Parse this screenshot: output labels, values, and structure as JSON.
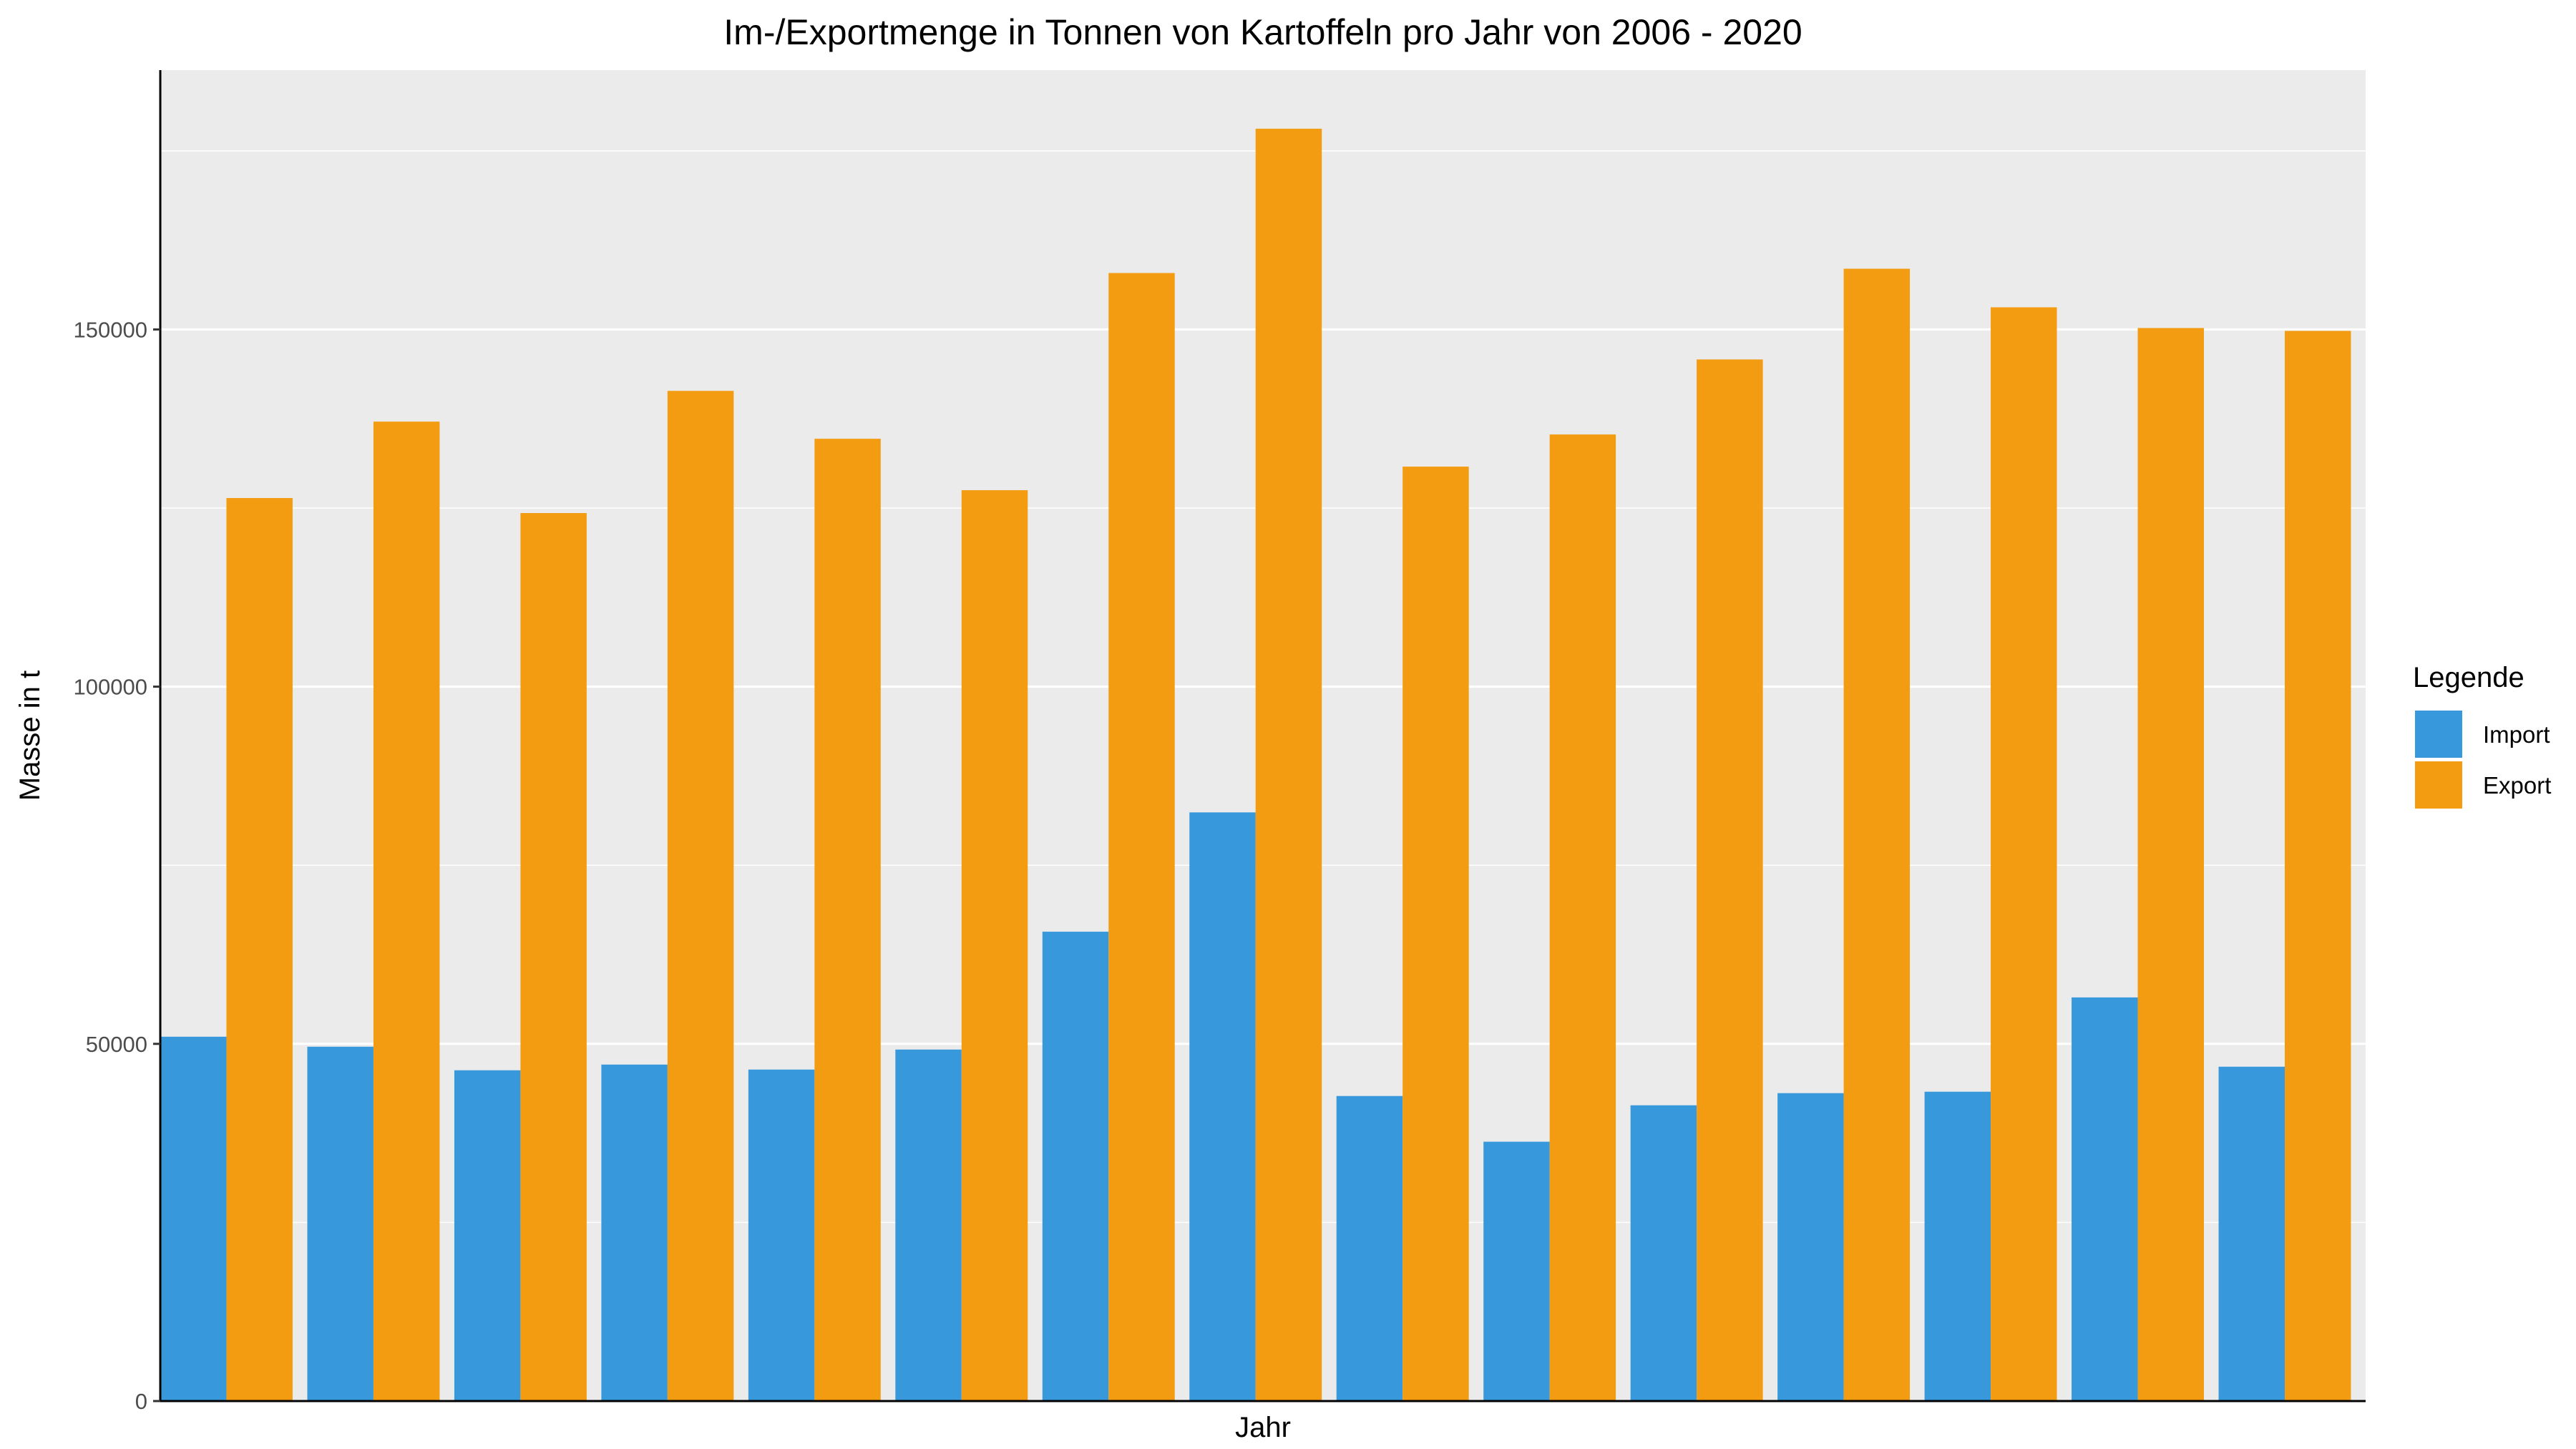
{
  "chart_data": {
    "type": "bar",
    "title": "Im-/Exportmenge in Tonnen von Kartoffeln pro Jahr von 2006 - 2020",
    "xlabel": "Jahr",
    "ylabel": "Masse in t",
    "categories": [
      "",
      "",
      "",
      "",
      "",
      "",
      "",
      "",
      "",
      "",
      "",
      "",
      "",
      "",
      ""
    ],
    "series": [
      {
        "name": "Import",
        "color": "#3799DB",
        "values": [
          51000,
          49600,
          46300,
          47100,
          46400,
          49200,
          65700,
          82400,
          42700,
          36300,
          41400,
          43100,
          43300,
          56500,
          46800
        ]
      },
      {
        "name": "Export",
        "color": "#F39C12",
        "values": [
          126400,
          137100,
          124300,
          141400,
          134700,
          127500,
          157900,
          178100,
          130800,
          135300,
          145800,
          158500,
          153100,
          150200,
          149800
        ]
      }
    ],
    "ylim": [
      0,
      186300
    ],
    "yticks": [
      0,
      50000,
      100000,
      150000
    ],
    "ytick_labels": [
      "0",
      "50000",
      "100000",
      "150000"
    ],
    "grid": true,
    "panel_background": "#EBEBEB",
    "grid_color": "#FFFFFF",
    "legend": {
      "title": "Legende",
      "position": "right"
    }
  }
}
